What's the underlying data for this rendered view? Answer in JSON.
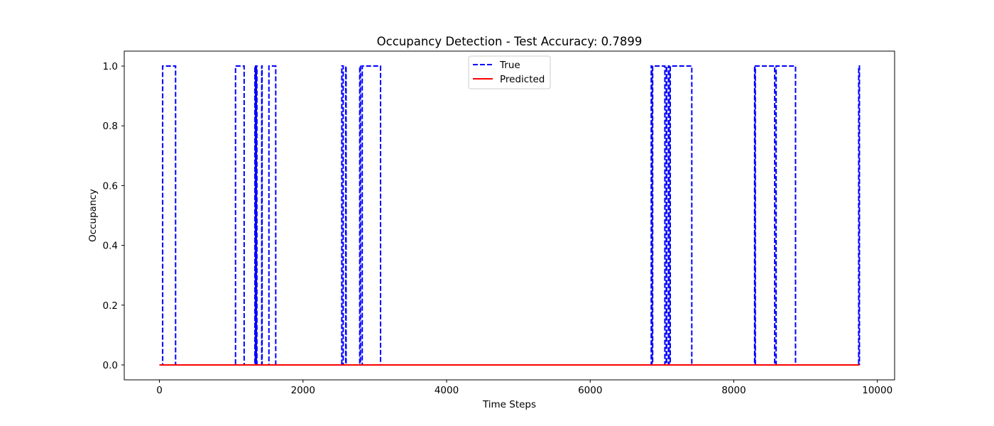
{
  "chart_data": {
    "type": "line",
    "title": "Occupancy Detection - Test Accuracy: 0.7899",
    "xlabel": "Time Steps",
    "ylabel": "Occupancy",
    "xlim": [
      -490,
      10240
    ],
    "ylim": [
      -0.05,
      1.05
    ],
    "xticks": [
      0,
      2000,
      4000,
      6000,
      8000,
      10000
    ],
    "xtick_labels": [
      "0",
      "2000",
      "4000",
      "6000",
      "8000",
      "10000"
    ],
    "yticks": [
      0.0,
      0.2,
      0.4,
      0.6,
      0.8,
      1.0
    ],
    "ytick_labels": [
      "0.0",
      "0.2",
      "0.4",
      "0.6",
      "0.8",
      "1.0"
    ],
    "grid": false,
    "legend_position": "upper center",
    "series": [
      {
        "name": "True",
        "color": "#0000ff",
        "style": "dashed",
        "x_end": 9750,
        "on_intervals": [
          [
            45,
            225
          ],
          [
            1060,
            1180
          ],
          [
            1330,
            1335
          ],
          [
            1340,
            1345
          ],
          [
            1350,
            1358
          ],
          [
            1425,
            1430
          ],
          [
            1525,
            1620
          ],
          [
            2540,
            2560
          ],
          [
            2595,
            2600
          ],
          [
            2790,
            2800
          ],
          [
            2825,
            3080
          ],
          [
            6850,
            6860
          ],
          [
            6870,
            7040
          ],
          [
            7060,
            7065
          ],
          [
            7090,
            7100
          ],
          [
            7115,
            7415
          ],
          [
            8290,
            8295
          ],
          [
            8300,
            8570
          ],
          [
            8590,
            8860
          ],
          [
            9740,
            9750
          ]
        ]
      },
      {
        "name": "Predicted",
        "color": "#ff0000",
        "style": "solid",
        "x": [
          0,
          9750
        ],
        "y": [
          0,
          0
        ]
      }
    ]
  }
}
